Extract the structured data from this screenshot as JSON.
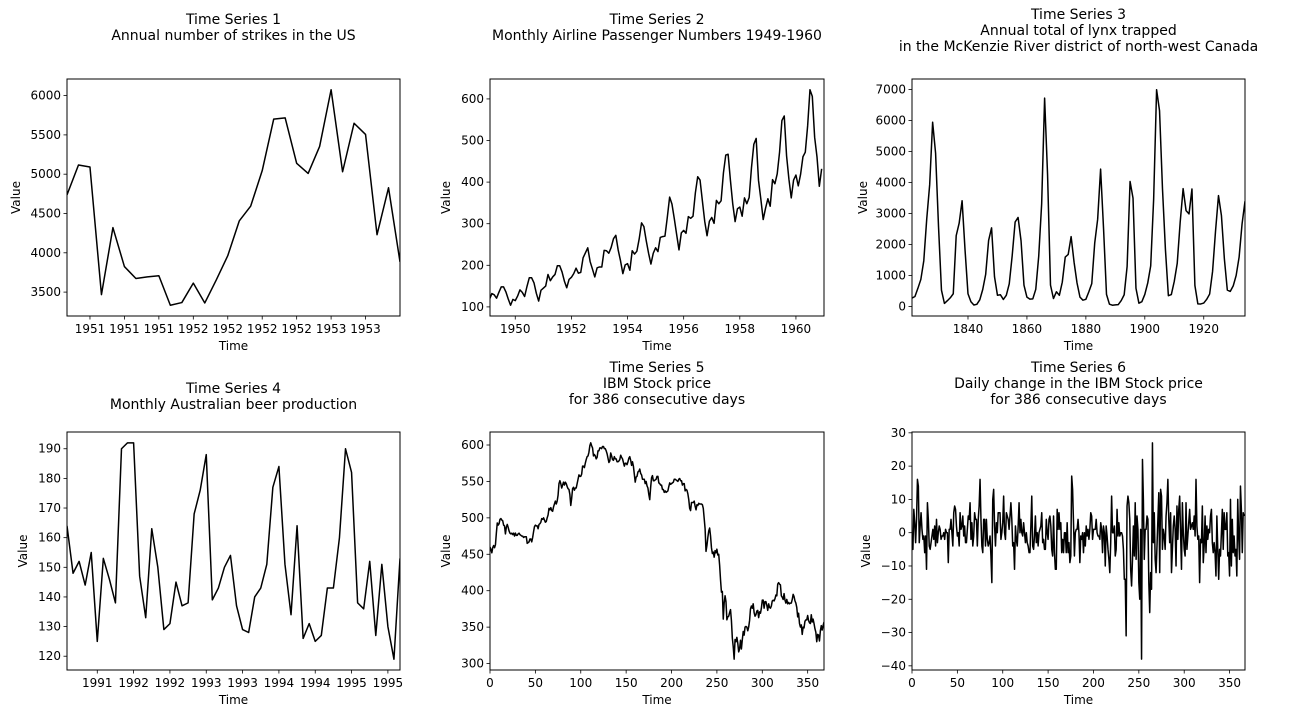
{
  "figure": {
    "background": "#ffffff",
    "line_color": "#000000"
  },
  "chart_data": [
    {
      "id": "ts1",
      "type": "line",
      "title_lines": [
        "Time Series 1",
        "Annual number of strikes in the US"
      ],
      "xlabel": "Time",
      "ylabel": "Value",
      "x": [
        0,
        1,
        2,
        3,
        4,
        5,
        6,
        7,
        8,
        9,
        10,
        11,
        12,
        13,
        14,
        15,
        16,
        17,
        18,
        19,
        20,
        21,
        22,
        23,
        24,
        25,
        26,
        27,
        28,
        29
      ],
      "values": [
        4737,
        5117,
        5091,
        3468,
        4320,
        3825,
        3673,
        3694,
        3708,
        3333,
        3367,
        3614,
        3362,
        3655,
        3963,
        4405,
        4595,
        5045,
        5700,
        5716,
        5138,
        5010,
        5353,
        6074,
        5031,
        5648,
        5506,
        4230,
        4827,
        3885
      ],
      "xlim": [
        0,
        29
      ],
      "ylim": [
        3196,
        6211
      ],
      "yticks": [
        3500,
        4000,
        4500,
        5000,
        5500,
        6000
      ],
      "ytick_labels": [
        "3500",
        "4000",
        "4500",
        "5000",
        "5500",
        "6000"
      ],
      "xticks": [
        2,
        5,
        8,
        11,
        14,
        17,
        20,
        23,
        26
      ],
      "xtick_labels": [
        "1951",
        "1951",
        "1951",
        "1952",
        "1952",
        "1952",
        "1952",
        "1953",
        "1953"
      ],
      "grid": false
    },
    {
      "id": "ts2",
      "type": "line",
      "title_lines": [
        "Time Series 2",
        "Monthly Airline Passenger Numbers 1949-1960"
      ],
      "xlabel": "Time",
      "ylabel": "Value",
      "x_start": 1949,
      "x_step": 0.0833333,
      "values": [
        112,
        118,
        132,
        129,
        121,
        135,
        148,
        148,
        136,
        119,
        104,
        118,
        115,
        126,
        141,
        135,
        125,
        149,
        170,
        170,
        158,
        133,
        114,
        140,
        145,
        150,
        178,
        163,
        172,
        178,
        199,
        199,
        184,
        162,
        146,
        166,
        171,
        180,
        193,
        181,
        183,
        218,
        230,
        242,
        209,
        191,
        172,
        194,
        196,
        196,
        236,
        235,
        229,
        243,
        264,
        272,
        237,
        211,
        180,
        201,
        204,
        188,
        235,
        227,
        234,
        264,
        302,
        293,
        259,
        229,
        203,
        229,
        242,
        233,
        267,
        269,
        270,
        315,
        364,
        347,
        312,
        274,
        237,
        278,
        284,
        277,
        317,
        313,
        318,
        374,
        413,
        405,
        355,
        306,
        271,
        306,
        315,
        301,
        356,
        348,
        355,
        422,
        465,
        467,
        404,
        347,
        305,
        336,
        340,
        318,
        362,
        348,
        363,
        435,
        491,
        505,
        404,
        359,
        310,
        337,
        360,
        342,
        406,
        396,
        420,
        472,
        548,
        559,
        463,
        407,
        362,
        405,
        417,
        391,
        419,
        461,
        472,
        535,
        622,
        606,
        508,
        461,
        390,
        432
      ],
      "xlim": [
        1949.1,
        1961.0
      ],
      "ylim": [
        78.1,
        647.9
      ],
      "yticks": [
        100,
        200,
        300,
        400,
        500,
        600
      ],
      "ytick_labels": [
        "100",
        "200",
        "300",
        "400",
        "500",
        "600"
      ],
      "xticks": [
        1950,
        1952,
        1954,
        1956,
        1958,
        1960
      ],
      "xtick_labels": [
        "1950",
        "1952",
        "1954",
        "1956",
        "1958",
        "1960"
      ],
      "grid": false
    },
    {
      "id": "ts3",
      "type": "line",
      "title_lines": [
        "Time Series 3",
        "Annual total of lynx trapped",
        "in the McKenzie River district of north-west Canada"
      ],
      "xlabel": "Time",
      "ylabel": "Value",
      "x_start": 1821,
      "x_step": 1,
      "values": [
        269,
        321,
        585,
        871,
        1475,
        2821,
        3928,
        5943,
        4950,
        2577,
        523,
        98,
        184,
        279,
        409,
        2285,
        2685,
        3409,
        1824,
        409,
        151,
        45,
        68,
        213,
        546,
        1033,
        2129,
        2536,
        957,
        361,
        377,
        225,
        360,
        731,
        1638,
        2725,
        2871,
        2119,
        684,
        299,
        236,
        245,
        552,
        1623,
        3311,
        6721,
        4254,
        687,
        255,
        473,
        358,
        784,
        1594,
        1676,
        2251,
        1426,
        756,
        299,
        201,
        229,
        469,
        736,
        2042,
        2811,
        4431,
        2511,
        389,
        73,
        39,
        49,
        59,
        188,
        377,
        1292,
        4031,
        3495,
        587,
        105,
        153,
        387,
        758,
        1307,
        3465,
        6991,
        6313,
        3794,
        1836,
        345,
        382,
        808,
        1388,
        2713,
        3800,
        3091,
        2985,
        3790,
        674,
        81,
        80,
        108,
        229,
        399,
        1132,
        2432,
        3574,
        2935,
        1537,
        529,
        485,
        662,
        1000,
        1590,
        2657,
        3396
      ],
      "xlim": [
        1821,
        1934
      ],
      "ylim": [
        -309,
        7339
      ],
      "yticks": [
        0,
        1000,
        2000,
        3000,
        4000,
        5000,
        6000,
        7000
      ],
      "ytick_labels": [
        "0",
        "1000",
        "2000",
        "3000",
        "4000",
        "5000",
        "6000",
        "7000"
      ],
      "xticks": [
        1840,
        1860,
        1880,
        1900,
        1920
      ],
      "xtick_labels": [
        "1840",
        "1860",
        "1880",
        "1900",
        "1920"
      ],
      "grid": false
    },
    {
      "id": "ts4",
      "type": "line",
      "title_lines": [
        "Time Series 4",
        "Monthly Australian beer production"
      ],
      "xlabel": "Time",
      "ylabel": "Value",
      "x_start": 0,
      "x_step": 1,
      "values": [
        164,
        148,
        152,
        144,
        155,
        125,
        153,
        146,
        138,
        190,
        192,
        192,
        147,
        133,
        163,
        150,
        129,
        131,
        145,
        137,
        138,
        168,
        176,
        188,
        139,
        143,
        150,
        154,
        137,
        129,
        128,
        140,
        143,
        151,
        177,
        184,
        151,
        134,
        164,
        126,
        131,
        125,
        127,
        143,
        143,
        160,
        190,
        182,
        138,
        136,
        152,
        127,
        151,
        130,
        119,
        153
      ],
      "xlim": [
        0,
        55
      ],
      "ylim": [
        115.35,
        195.65
      ],
      "yticks": [
        120,
        130,
        140,
        150,
        160,
        170,
        180,
        190
      ],
      "ytick_labels": [
        "120",
        "130",
        "140",
        "150",
        "160",
        "170",
        "180",
        "190"
      ],
      "xticks": [
        5,
        11,
        17,
        23,
        29,
        35,
        41,
        47,
        53
      ],
      "xtick_labels": [
        "1991",
        "1992",
        "1992",
        "1993",
        "1993",
        "1994",
        "1994",
        "1995",
        "1995"
      ],
      "grid": false
    },
    {
      "id": "ts5",
      "type": "line",
      "title_lines": [
        "Time Series 5",
        "IBM Stock price",
        "for 386 consecutive days"
      ],
      "xlabel": "Time",
      "ylabel": "Value",
      "x_start": 0,
      "x_step": 1,
      "values": [
        460,
        457,
        452,
        459,
        462,
        459,
        463,
        479,
        493,
        490,
        492,
        498,
        499,
        497,
        496,
        490,
        489,
        478,
        487,
        491,
        487,
        482,
        479,
        478,
        479,
        477,
        479,
        475,
        479,
        476,
        476,
        478,
        479,
        477,
        476,
        475,
        475,
        473,
        474,
        474,
        474,
        465,
        466,
        467,
        471,
        471,
        467,
        473,
        481,
        488,
        490,
        489,
        489,
        485,
        491,
        492,
        494,
        499,
        498,
        500,
        497,
        494,
        495,
        500,
        504,
        513,
        511,
        514,
        510,
        509,
        515,
        519,
        523,
        519,
        523,
        531,
        547,
        551,
        547,
        541,
        545,
        549,
        545,
        549,
        547,
        543,
        540,
        539,
        532,
        517,
        527,
        540,
        542,
        538,
        541,
        541,
        547,
        553,
        559,
        557,
        557,
        560,
        571,
        571,
        569,
        575,
        580,
        584,
        585,
        590,
        599,
        603,
        599,
        596,
        585,
        587,
        585,
        581,
        583,
        592,
        592,
        596,
        596,
        595,
        598,
        598,
        595,
        595,
        592,
        588,
        582,
        576,
        578,
        589,
        585,
        580,
        579,
        584,
        581,
        581,
        577,
        577,
        578,
        580,
        586,
        583,
        581,
        576,
        571,
        575,
        575,
        573,
        577,
        582,
        584,
        579,
        572,
        577,
        571,
        560,
        549,
        556,
        557,
        563,
        564,
        567,
        561,
        559,
        553,
        553,
        553,
        547,
        550,
        544,
        541,
        532,
        525,
        542,
        555,
        558,
        551,
        551,
        552,
        553,
        557,
        557,
        548,
        547,
        545,
        545,
        539,
        539,
        535,
        537,
        535,
        536,
        537,
        543,
        548,
        546,
        547,
        548,
        549,
        553,
        553,
        552,
        551,
        550,
        553,
        554,
        551,
        551,
        545,
        547,
        547,
        537,
        539,
        538,
        533,
        525,
        513,
        510,
        521,
        521,
        521,
        523,
        516,
        511,
        518,
        517,
        520,
        519,
        519,
        519,
        518,
        513,
        499,
        485,
        454,
        462,
        473,
        482,
        486,
        475,
        459,
        451,
        453,
        446,
        455,
        452,
        457,
        449,
        450,
        435,
        415,
        398,
        399,
        361,
        383,
        393,
        385,
        360,
        364,
        365,
        370,
        374,
        359,
        335,
        323,
        306,
        333,
        330,
        336,
        328,
        316,
        320,
        332,
        320,
        333,
        344,
        339,
        350,
        351,
        350,
        345,
        350,
        359,
        375,
        379,
        376,
        382,
        370,
        365,
        367,
        372,
        373,
        363,
        371,
        369,
        376,
        387,
        387,
        376,
        385,
        385,
        380,
        373,
        382,
        377,
        376,
        379,
        386,
        387,
        386,
        389,
        394,
        393,
        409,
        411,
        409,
        408,
        393,
        391,
        388,
        396,
        387,
        383,
        388,
        382,
        384,
        382,
        383,
        383,
        388,
        395,
        392,
        386,
        383,
        377,
        364,
        369,
        355,
        350,
        353,
        340,
        350,
        349,
        358,
        360,
        360,
        366,
        359,
        356,
        355,
        367,
        357,
        361,
        355,
        348,
        343,
        330,
        340,
        339,
        331,
        345,
        352,
        346,
        352,
        357
      ],
      "xlim": [
        0,
        368
      ],
      "ylim": [
        291.15,
        617.85
      ],
      "yticks": [
        300,
        350,
        400,
        450,
        500,
        550,
        600
      ],
      "ytick_labels": [
        "300",
        "350",
        "400",
        "450",
        "500",
        "550",
        "600"
      ],
      "xticks": [
        0,
        50,
        100,
        150,
        200,
        250,
        300,
        350
      ],
      "xtick_labels": [
        "0",
        "50",
        "100",
        "150",
        "200",
        "250",
        "300",
        "350"
      ],
      "grid": false
    },
    {
      "id": "ts6",
      "type": "line",
      "title_lines": [
        "Time Series 6",
        "Daily change in the IBM Stock price",
        "for 386 consecutive days"
      ],
      "xlabel": "Time",
      "ylabel": "Value",
      "x_start": 0,
      "x_step": 1,
      "values": [
        -3,
        -5,
        7,
        3,
        -3,
        4,
        16,
        14,
        -3,
        2,
        6,
        1,
        -2,
        -1,
        -6,
        -1,
        -11,
        9,
        4,
        -4,
        -5,
        -3,
        -1,
        1,
        -2,
        2,
        -4,
        4,
        -3,
        0,
        2,
        1,
        -2,
        -1,
        -1,
        0,
        -2,
        1,
        0,
        0,
        -9,
        1,
        1,
        4,
        0,
        -4,
        6,
        8,
        7,
        2,
        -1,
        0,
        -4,
        6,
        1,
        2,
        5,
        -1,
        2,
        -3,
        -3,
        1,
        5,
        4,
        9,
        -2,
        3,
        -4,
        -1,
        6,
        4,
        4,
        -4,
        4,
        8,
        16,
        4,
        -4,
        -6,
        4,
        4,
        -4,
        4,
        -2,
        -4,
        -3,
        -1,
        -7,
        -15,
        10,
        13,
        2,
        -4,
        3,
        0,
        6,
        6,
        6,
        -2,
        0,
        3,
        11,
        0,
        -2,
        6,
        5,
        4,
        1,
        5,
        9,
        4,
        -4,
        -3,
        -11,
        2,
        -2,
        -4,
        2,
        9,
        0,
        4,
        0,
        -1,
        3,
        0,
        -3,
        0,
        -3,
        -4,
        -6,
        -6,
        2,
        11,
        -4,
        -5,
        -1,
        5,
        -3,
        0,
        -4,
        0,
        1,
        2,
        6,
        -3,
        -2,
        -5,
        -5,
        4,
        0,
        -2,
        4,
        5,
        2,
        -5,
        -7,
        5,
        -6,
        -11,
        -11,
        7,
        1,
        6,
        1,
        3,
        -6,
        -2,
        -6,
        0,
        0,
        -6,
        3,
        -6,
        -3,
        -9,
        -7,
        17,
        13,
        3,
        -7,
        0,
        1,
        1,
        4,
        0,
        -9,
        -1,
        -2,
        0,
        -6,
        0,
        -4,
        2,
        -1,
        1,
        -2,
        1,
        6,
        5,
        -2,
        1,
        1,
        1,
        4,
        0,
        -1,
        -1,
        -2,
        3,
        1,
        -6,
        2,
        0,
        -10,
        2,
        -1,
        -5,
        -8,
        -12,
        -3,
        11,
        0,
        0,
        2,
        -7,
        -5,
        7,
        -1,
        3,
        -1,
        0,
        0,
        -1,
        -5,
        -14,
        -14,
        -31,
        8,
        11,
        9,
        4,
        -11,
        -16,
        -8,
        2,
        -7,
        9,
        -8,
        5,
        1,
        -15,
        -20,
        1,
        -38,
        22,
        10,
        -8,
        1,
        1,
        5,
        4,
        -15,
        -24,
        -12,
        -17,
        27,
        -3,
        6,
        -8,
        -12,
        -4,
        4,
        12,
        -12,
        13,
        11,
        -5,
        1,
        -1,
        -5,
        5,
        9,
        16,
        4,
        -3,
        6,
        -12,
        -5,
        2,
        5,
        1,
        -10,
        8,
        -2,
        7,
        11,
        0,
        -11,
        9,
        0,
        -5,
        -7,
        9,
        -5,
        -1,
        3,
        7,
        1,
        2,
        3,
        1,
        5,
        -1,
        16,
        2,
        -2,
        -1,
        -15,
        -2,
        -3,
        8,
        -9,
        -4,
        5,
        -6,
        2,
        -2,
        1,
        0,
        5,
        7,
        -3,
        -6,
        -3,
        -6,
        -13,
        5,
        -5,
        -14,
        -5,
        -7,
        0,
        7,
        -5,
        6,
        1,
        1,
        6,
        -7,
        -6,
        -13,
        10,
        -10,
        4,
        -6,
        -1,
        -7,
        -5,
        -13,
        10,
        -1,
        -8,
        14,
        7,
        -6,
        6,
        5
      ],
      "xlim": [
        0,
        367
      ],
      "ylim": [
        -41.25,
        30.25
      ],
      "yticks": [
        -40,
        -30,
        -20,
        -10,
        0,
        10,
        20,
        30
      ],
      "ytick_labels": [
        "−40",
        "−30",
        "−20",
        "−10",
        "0",
        "10",
        "20",
        "30"
      ],
      "xticks": [
        0,
        50,
        100,
        150,
        200,
        250,
        300,
        350
      ],
      "xtick_labels": [
        "0",
        "50",
        "100",
        "150",
        "200",
        "250",
        "300",
        "350"
      ],
      "grid": false
    }
  ]
}
